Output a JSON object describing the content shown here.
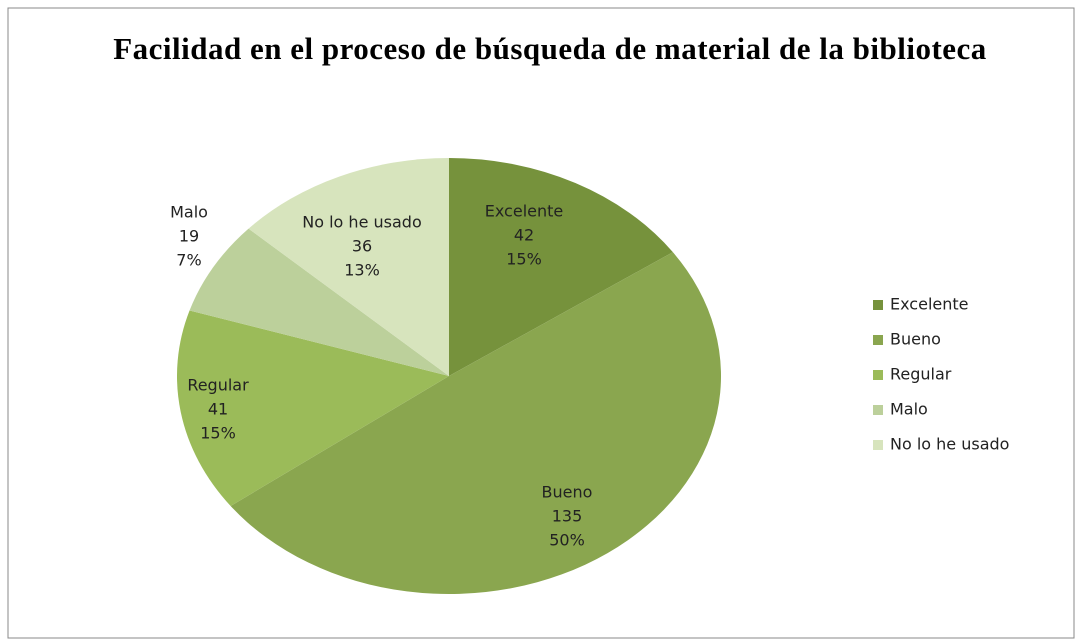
{
  "chart_data": {
    "type": "pie",
    "title": "Facilidad en el proceso de búsqueda de material de la biblioteca",
    "categories": [
      "Excelente",
      "Bueno",
      "Regular",
      "Malo",
      "No lo he usado"
    ],
    "values": [
      42,
      135,
      41,
      19,
      36
    ],
    "percent_labels": [
      "15%",
      "50%",
      "15%",
      "7%",
      "13%"
    ],
    "colors": [
      "#76923c",
      "#8aa64f",
      "#9bbb59",
      "#bcd09b",
      "#d7e4bd"
    ],
    "legend": "right"
  }
}
